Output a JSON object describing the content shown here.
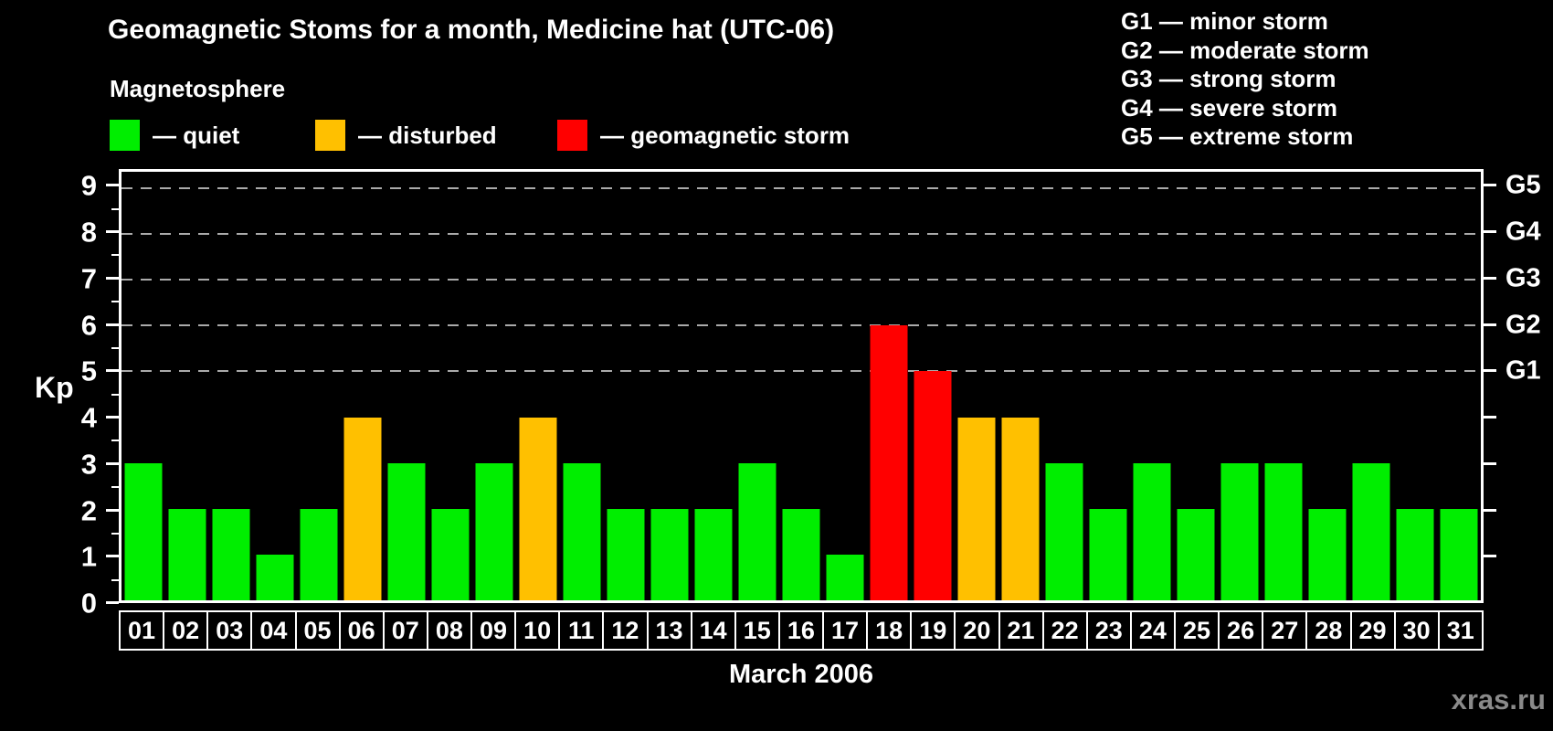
{
  "legend": {
    "heading": "Magnetosphere",
    "items": [
      {
        "key": "quiet",
        "label": "— quiet",
        "color": "#00EE00"
      },
      {
        "key": "disturbed",
        "label": "— disturbed",
        "color": "#FFC000"
      },
      {
        "key": "storm",
        "label": "— geomagnetic storm",
        "color": "#FF0000"
      }
    ]
  },
  "g_scale": [
    "G1 — minor storm",
    "G2 — moderate storm",
    "G3 — strong storm",
    "G4 — severe storm",
    "G5 — extreme storm"
  ],
  "chart_data": {
    "type": "bar",
    "title": "Geomagnetic Stoms for a month, Medicine hat (UTC-06)",
    "xlabel": "March 2006",
    "ylabel": "Kp",
    "ylim": [
      0,
      9.36
    ],
    "yticks": [
      0,
      1,
      2,
      3,
      4,
      5,
      6,
      7,
      8,
      9
    ],
    "gridlines_kp": [
      5,
      6,
      7,
      8,
      9
    ],
    "grid": "dashed horizontal lines at storm levels only",
    "legend_position": "top-left",
    "categories": [
      "01",
      "02",
      "03",
      "04",
      "05",
      "06",
      "07",
      "08",
      "09",
      "10",
      "11",
      "12",
      "13",
      "14",
      "15",
      "16",
      "17",
      "18",
      "19",
      "20",
      "21",
      "22",
      "23",
      "24",
      "25",
      "26",
      "27",
      "28",
      "29",
      "30",
      "31"
    ],
    "values": [
      3,
      2,
      2,
      1,
      2,
      4,
      3,
      2,
      3,
      4,
      3,
      2,
      2,
      2,
      3,
      2,
      1,
      6,
      5,
      4,
      4,
      3,
      2,
      3,
      2,
      3,
      3,
      2,
      3,
      2,
      2
    ],
    "statuses": [
      "quiet",
      "quiet",
      "quiet",
      "quiet",
      "quiet",
      "disturbed",
      "quiet",
      "quiet",
      "quiet",
      "disturbed",
      "quiet",
      "quiet",
      "quiet",
      "quiet",
      "quiet",
      "quiet",
      "quiet",
      "storm",
      "storm",
      "disturbed",
      "disturbed",
      "quiet",
      "quiet",
      "quiet",
      "quiet",
      "quiet",
      "quiet",
      "quiet",
      "quiet",
      "quiet",
      "quiet"
    ],
    "right_axis": {
      "labels": [
        {
          "text": "G1",
          "kp": 5
        },
        {
          "text": "G2",
          "kp": 6
        },
        {
          "text": "G3",
          "kp": 7
        },
        {
          "text": "G4",
          "kp": 8
        },
        {
          "text": "G5",
          "kp": 9
        }
      ],
      "tick_kp": [
        1,
        2,
        3,
        4,
        5,
        6,
        7,
        8,
        9
      ]
    }
  },
  "watermark": "xras.ru",
  "colors": {
    "background": "#000000",
    "text": "#FFFFFF",
    "quiet": "#00EE00",
    "disturbed": "#FFC000",
    "storm": "#FF0000",
    "grid": "#AAAAAA",
    "watermark": "#8A8A8A"
  }
}
